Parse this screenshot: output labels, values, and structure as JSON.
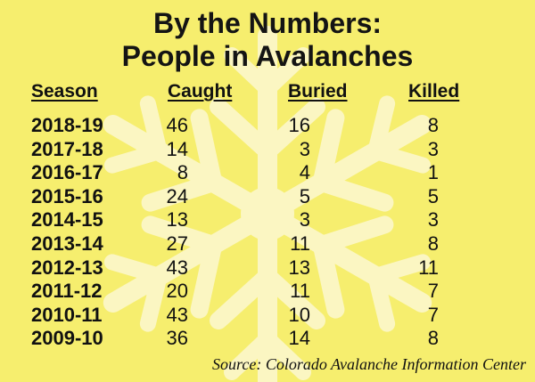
{
  "chart_data": {
    "type": "table",
    "title": "By the Numbers:",
    "subtitle": "People in Avalanches",
    "columns": [
      "Season",
      "Caught",
      "Buried",
      "Killed"
    ],
    "rows": [
      {
        "season": "2018-19",
        "caught": 46,
        "buried": 16,
        "killed": 8
      },
      {
        "season": "2017-18",
        "caught": 14,
        "buried": 3,
        "killed": 3
      },
      {
        "season": "2016-17",
        "caught": 8,
        "buried": 4,
        "killed": 1
      },
      {
        "season": "2015-16",
        "caught": 24,
        "buried": 5,
        "killed": 5
      },
      {
        "season": "2014-15",
        "caught": 13,
        "buried": 3,
        "killed": 3
      },
      {
        "season": "2013-14",
        "caught": 27,
        "buried": 11,
        "killed": 8
      },
      {
        "season": "2012-13",
        "caught": 43,
        "buried": 13,
        "killed": 11
      },
      {
        "season": "2011-12",
        "caught": 20,
        "buried": 11,
        "killed": 7
      },
      {
        "season": "2010-11",
        "caught": 43,
        "buried": 10,
        "killed": 7
      },
      {
        "season": "2009-10",
        "caught": 36,
        "buried": 14,
        "killed": 8
      }
    ],
    "source": "Source: Colorado Avalanche Information Center"
  },
  "colors": {
    "background": "#f6ee6e",
    "snowflake": "#fbf6c2",
    "text": "#111111"
  },
  "background_icon": "snowflake-icon"
}
